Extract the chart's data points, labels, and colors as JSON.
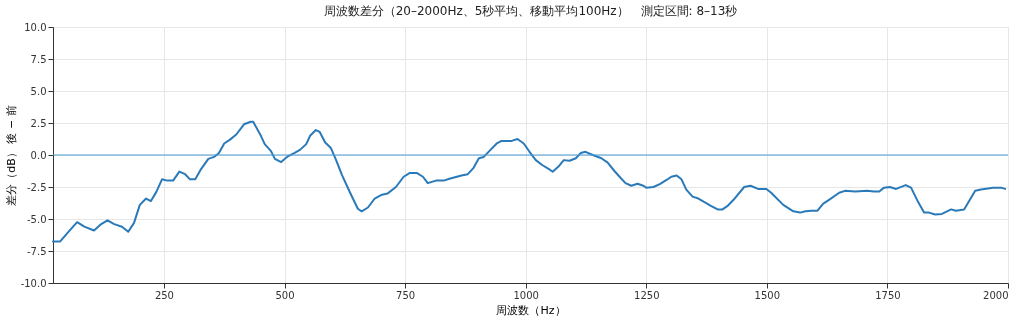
{
  "chart_data": {
    "type": "line",
    "title": "周波数差分（20–2000Hz、5秒平均、移動平均100Hz）　測定区間: 8–13秒",
    "xlabel": "周波数（Hz）",
    "ylabel": "差分（dB） 後 − 前",
    "x": [
      20,
      35,
      52,
      70,
      85,
      105,
      120,
      133,
      147,
      163,
      176,
      188,
      200,
      213,
      223,
      234,
      246,
      257,
      269,
      282,
      294,
      304,
      315,
      327,
      342,
      354,
      364,
      375,
      387,
      400,
      416,
      430,
      435,
      451,
      459,
      472,
      480,
      493,
      507,
      520,
      532,
      545,
      553,
      565,
      573,
      584,
      596,
      607,
      619,
      636,
      652,
      660,
      673,
      687,
      702,
      714,
      731,
      747,
      760,
      774,
      787,
      797,
      814,
      830,
      842,
      867,
      880,
      892,
      903,
      913,
      927,
      940,
      950,
      971,
      983,
      996,
      1008,
      1021,
      1035,
      1050,
      1056,
      1068,
      1079,
      1091,
      1104,
      1114,
      1124,
      1139,
      1157,
      1170,
      1184,
      1197,
      1207,
      1219,
      1232,
      1244,
      1250,
      1265,
      1279,
      1292,
      1302,
      1313,
      1323,
      1333,
      1346,
      1358,
      1369,
      1383,
      1398,
      1408,
      1418,
      1431,
      1453,
      1466,
      1482,
      1499,
      1509,
      1534,
      1555,
      1569,
      1580,
      1592,
      1605,
      1617,
      1629,
      1650,
      1662,
      1683,
      1708,
      1722,
      1733,
      1743,
      1755,
      1768,
      1788,
      1799,
      1814,
      1826,
      1836,
      1849,
      1863,
      1882,
      1892,
      1909,
      1932,
      1944,
      1969,
      1986,
      1994
    ],
    "series": [
      {
        "color": "#2a7ab9",
        "values": [
          -6.75,
          -6.75,
          -6.0,
          -5.25,
          -5.6,
          -5.9,
          -5.4,
          -5.1,
          -5.4,
          -5.6,
          -6.0,
          -5.3,
          -3.9,
          -3.4,
          -3.6,
          -2.9,
          -1.9,
          -2.0,
          -2.0,
          -1.3,
          -1.5,
          -1.9,
          -1.9,
          -1.1,
          -0.3,
          -0.15,
          0.15,
          0.9,
          1.2,
          1.6,
          2.4,
          2.6,
          2.6,
          1.5,
          0.85,
          0.3,
          -0.3,
          -0.55,
          -0.1,
          0.15,
          0.4,
          0.85,
          1.5,
          1.95,
          1.8,
          1.0,
          0.55,
          -0.4,
          -1.55,
          -2.95,
          -4.2,
          -4.4,
          -4.1,
          -3.4,
          -3.1,
          -3.0,
          -2.5,
          -1.7,
          -1.4,
          -1.4,
          -1.7,
          -2.2,
          -2.0,
          -2.0,
          -1.85,
          -1.6,
          -1.5,
          -1.0,
          -0.25,
          -0.15,
          0.4,
          0.9,
          1.1,
          1.1,
          1.25,
          0.9,
          0.25,
          -0.4,
          -0.8,
          -1.15,
          -1.3,
          -0.9,
          -0.4,
          -0.45,
          -0.25,
          0.15,
          0.25,
          0.0,
          -0.25,
          -0.6,
          -1.25,
          -1.8,
          -2.2,
          -2.4,
          -2.25,
          -2.4,
          -2.55,
          -2.5,
          -2.25,
          -1.95,
          -1.7,
          -1.6,
          -1.9,
          -2.7,
          -3.25,
          -3.4,
          -3.65,
          -3.95,
          -4.25,
          -4.25,
          -4.0,
          -3.5,
          -2.5,
          -2.4,
          -2.65,
          -2.65,
          -2.95,
          -3.9,
          -4.4,
          -4.5,
          -4.4,
          -4.35,
          -4.35,
          -3.8,
          -3.5,
          -2.95,
          -2.8,
          -2.85,
          -2.8,
          -2.85,
          -2.85,
          -2.55,
          -2.5,
          -2.65,
          -2.35,
          -2.55,
          -3.7,
          -4.5,
          -4.5,
          -4.65,
          -4.6,
          -4.25,
          -4.35,
          -4.25,
          -2.8,
          -2.7,
          -2.55,
          -2.55,
          -2.65
        ]
      }
    ],
    "xlim": [
      20,
      2000
    ],
    "xticks": [
      250,
      500,
      750,
      1000,
      1250,
      1500,
      1750,
      2000
    ],
    "ylim": [
      -10,
      10
    ],
    "yticks": [
      {
        "value": -10,
        "label": "-10.0"
      },
      {
        "value": -7.5,
        "label": "-7.5"
      },
      {
        "value": -5,
        "label": "-5.0"
      },
      {
        "value": -2.5,
        "label": "-2.5"
      },
      {
        "value": 0,
        "label": "0.0"
      },
      {
        "value": 2.5,
        "label": "2.5"
      },
      {
        "value": 5,
        "label": "5.0"
      },
      {
        "value": 7.5,
        "label": "7.5"
      },
      {
        "value": 10,
        "label": "10.0"
      }
    ],
    "ref_lines": [
      {
        "axis": "y",
        "value": 0,
        "color": "#4a9bd4"
      }
    ],
    "grid": true
  }
}
